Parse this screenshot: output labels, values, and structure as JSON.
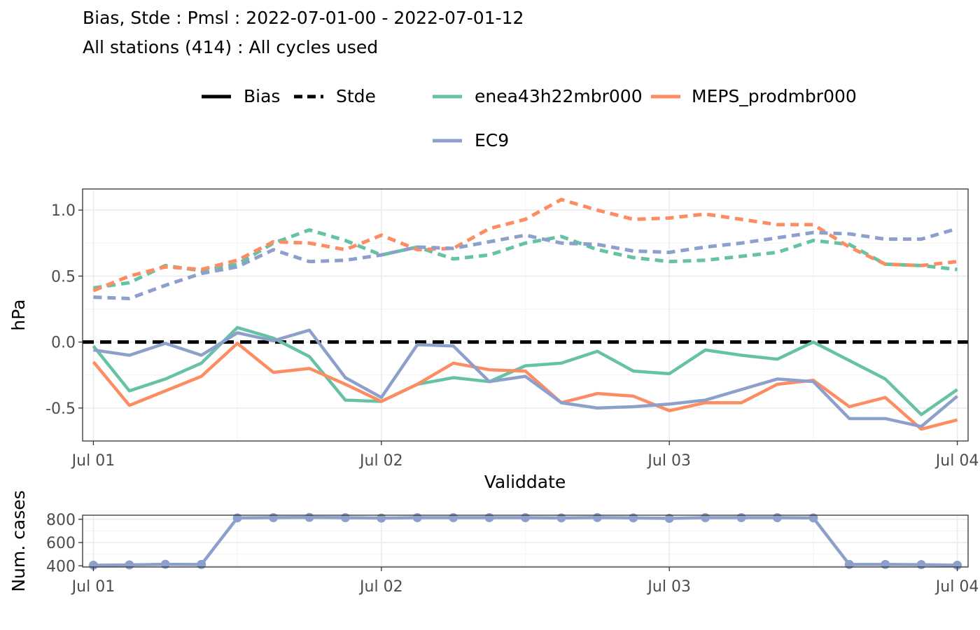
{
  "chart_data": [
    {
      "type": "line",
      "title": "Bias, Stde : Pmsl : 2022-07-01-00 - 2022-07-01-12",
      "subtitle": "All stations (414) : All cycles used",
      "xlabel": "Validdate",
      "ylabel": "hPa",
      "ylim": [
        -0.75,
        1.16
      ],
      "yticks": [
        1.0,
        0.5,
        0.0,
        -0.5
      ],
      "ytick_labels": [
        "1.0",
        "0.5",
        "0.0",
        "-0.5"
      ],
      "xlim": [
        -0.3,
        24.3
      ],
      "x_ticks": [
        0,
        8,
        16,
        24
      ],
      "x_tick_labels": [
        "Jul 01",
        "Jul 02",
        "Jul 03",
        "Jul 04"
      ],
      "x": [
        0,
        1,
        2,
        3,
        4,
        5,
        6,
        7,
        8,
        9,
        10,
        11,
        12,
        13,
        14,
        15,
        16,
        17,
        18,
        19,
        20,
        21,
        22,
        23,
        24
      ],
      "grid": true,
      "reference_line": {
        "y": 0.0,
        "style": "dashed",
        "color": "#000000"
      },
      "linetype_legend": [
        {
          "label": "Bias",
          "style": "solid"
        },
        {
          "label": "Stde",
          "style": "dashed"
        }
      ],
      "series": [
        {
          "name": "enea43h22mbr000",
          "color": "#66c2a5",
          "bias": [
            -0.03,
            -0.37,
            -0.28,
            -0.16,
            0.11,
            0.03,
            -0.11,
            -0.44,
            -0.45,
            -0.32,
            -0.27,
            -0.3,
            -0.18,
            -0.16,
            -0.07,
            -0.22,
            -0.24,
            -0.06,
            -0.1,
            -0.13,
            0.0,
            -0.14,
            -0.28,
            -0.55,
            -0.36
          ],
          "stde": [
            0.41,
            0.45,
            0.58,
            0.54,
            0.59,
            0.75,
            0.85,
            0.77,
            0.66,
            0.72,
            0.63,
            0.66,
            0.75,
            0.8,
            0.7,
            0.64,
            0.61,
            0.62,
            0.65,
            0.68,
            0.77,
            0.74,
            0.59,
            0.58,
            0.55
          ]
        },
        {
          "name": "MEPS_prodmbr000",
          "color": "#fc8d62",
          "bias": [
            -0.15,
            -0.48,
            -0.37,
            -0.26,
            -0.01,
            -0.23,
            -0.2,
            -0.32,
            -0.45,
            -0.32,
            -0.16,
            -0.21,
            -0.22,
            -0.46,
            -0.39,
            -0.41,
            -0.52,
            -0.46,
            -0.46,
            -0.32,
            -0.29,
            -0.49,
            -0.42,
            -0.66,
            -0.59
          ],
          "stde": [
            0.39,
            0.5,
            0.57,
            0.55,
            0.62,
            0.76,
            0.75,
            0.7,
            0.81,
            0.7,
            0.71,
            0.86,
            0.93,
            1.08,
            1.0,
            0.93,
            0.94,
            0.97,
            0.93,
            0.89,
            0.89,
            0.72,
            0.59,
            0.58,
            0.61
          ]
        },
        {
          "name": "EC9",
          "color": "#8da0cb",
          "bias": [
            -0.06,
            -0.1,
            -0.01,
            -0.1,
            0.07,
            0.01,
            0.09,
            -0.27,
            -0.42,
            -0.02,
            -0.03,
            -0.3,
            -0.26,
            -0.46,
            -0.5,
            -0.49,
            -0.47,
            -0.44,
            -0.36,
            -0.28,
            -0.3,
            -0.58,
            -0.58,
            -0.64,
            -0.41
          ],
          "stde": [
            0.34,
            0.33,
            0.43,
            0.52,
            0.57,
            0.7,
            0.61,
            0.62,
            0.66,
            0.72,
            0.71,
            0.76,
            0.81,
            0.75,
            0.74,
            0.69,
            0.68,
            0.72,
            0.75,
            0.79,
            0.83,
            0.82,
            0.78,
            0.78,
            0.86
          ]
        }
      ]
    },
    {
      "type": "line",
      "ylabel": "Num. cases",
      "ylim": [
        390,
        835
      ],
      "yticks": [
        800,
        600,
        400
      ],
      "ytick_labels": [
        "800",
        "600",
        "400"
      ],
      "xlim": [
        -0.3,
        24.3
      ],
      "x_ticks": [
        0,
        8,
        16,
        24
      ],
      "x_tick_labels": [
        "Jul 01",
        "Jul 02",
        "Jul 03",
        "Jul 04"
      ],
      "x": [
        0,
        1,
        2,
        3,
        4,
        5,
        6,
        7,
        8,
        9,
        10,
        11,
        12,
        13,
        14,
        15,
        16,
        17,
        18,
        19,
        20,
        21,
        22,
        23,
        24
      ],
      "grid": true,
      "series": [
        {
          "name": "EC9",
          "color": "#8da0cb",
          "values": [
            405,
            408,
            413,
            412,
            812,
            814,
            816,
            814,
            810,
            814,
            814,
            814,
            814,
            812,
            815,
            812,
            808,
            814,
            814,
            814,
            812,
            412,
            412,
            410,
            405
          ]
        }
      ]
    }
  ]
}
